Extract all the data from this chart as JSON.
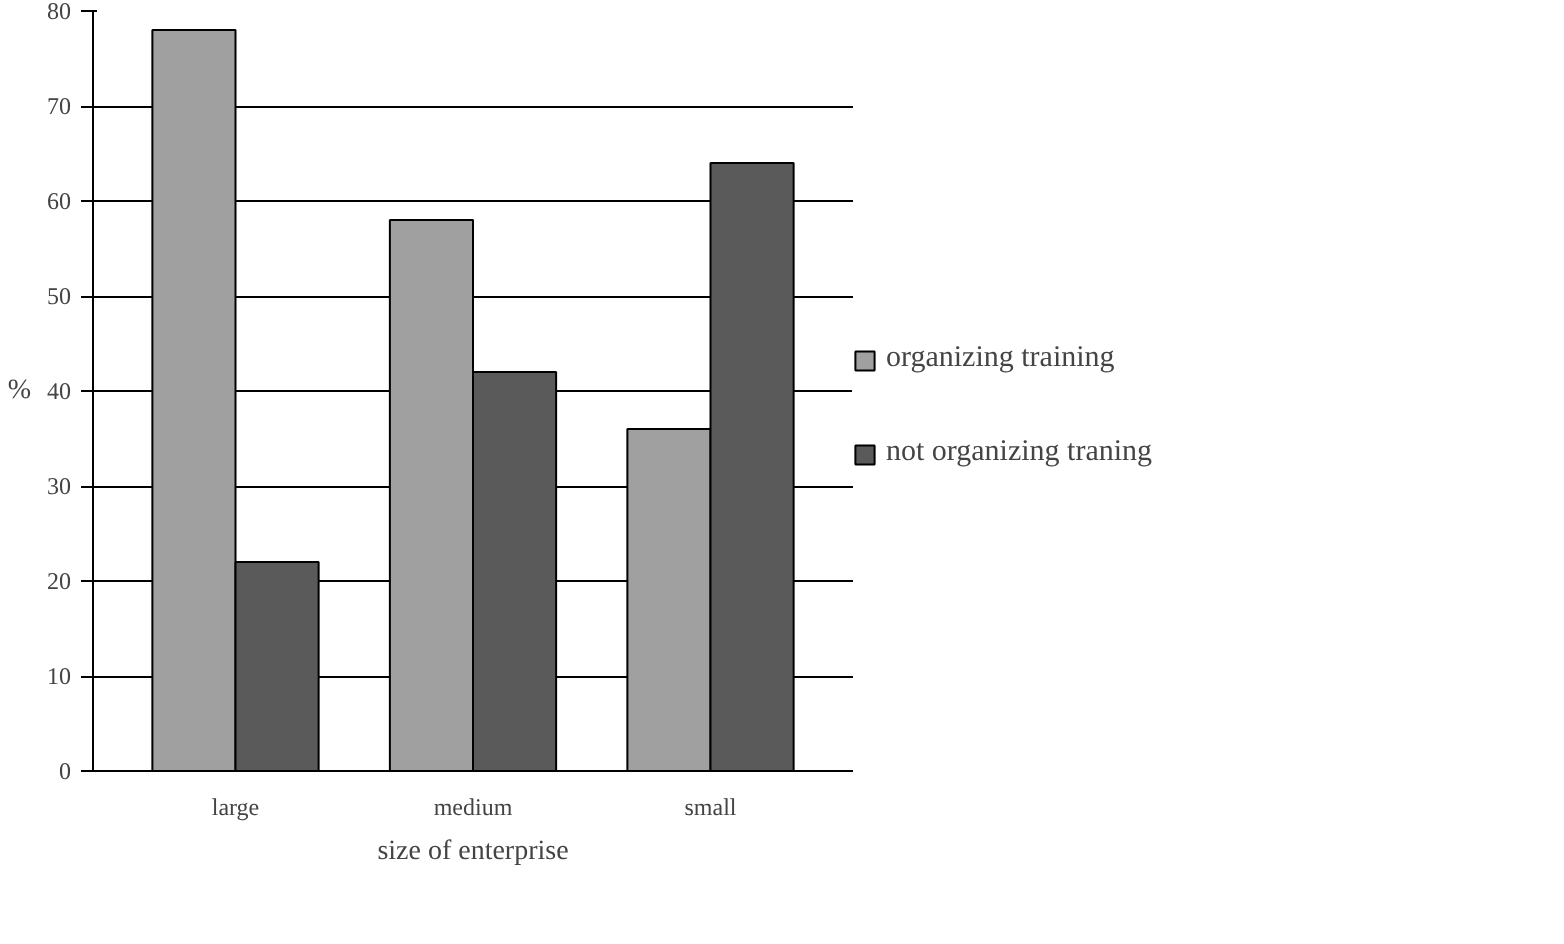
{
  "chart_data": {
    "type": "bar",
    "xlabel": "size of enterprise",
    "ylabel": "%",
    "categories": [
      "large",
      "medium",
      "small"
    ],
    "series": [
      {
        "name": "organizing training",
        "color": "#a0a0a0",
        "values": [
          78,
          58,
          36
        ]
      },
      {
        "name": "not organizing traning",
        "color": "#5a5a5a",
        "values": [
          22,
          42,
          64
        ]
      }
    ],
    "ylim": [
      0,
      80
    ],
    "yticks": [
      0,
      10,
      20,
      30,
      40,
      50,
      60,
      70,
      80
    ],
    "grid": "y",
    "legend": "right"
  }
}
